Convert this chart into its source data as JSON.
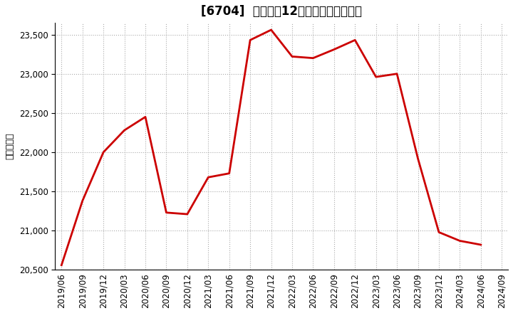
{
  "title": "[6704]  売上高の12か月移動合計の推移",
  "ylabel": "（百万円）",
  "line_color": "#cc0000",
  "line_width": 2.0,
  "background_color": "#ffffff",
  "grid_color": "#aaaaaa",
  "ylim": [
    20500,
    23650
  ],
  "yticks": [
    20500,
    21000,
    21500,
    22000,
    22500,
    23000,
    23500
  ],
  "dates": [
    "2019/06",
    "2019/09",
    "2019/12",
    "2020/03",
    "2020/06",
    "2020/09",
    "2020/12",
    "2021/03",
    "2021/06",
    "2021/09",
    "2021/12",
    "2022/03",
    "2022/06",
    "2022/09",
    "2022/12",
    "2023/03",
    "2023/06",
    "2023/09",
    "2023/12",
    "2024/03",
    "2024/06"
  ],
  "values": [
    20560,
    21380,
    22000,
    22280,
    22450,
    21230,
    21210,
    21680,
    21730,
    23430,
    23560,
    23220,
    23200,
    23310,
    23430,
    22960,
    23000,
    21920,
    20980,
    20870,
    20820
  ],
  "xtick_labels": [
    "2019/06",
    "2019/09",
    "2019/12",
    "2020/03",
    "2020/06",
    "2020/09",
    "2020/12",
    "2021/03",
    "2021/06",
    "2021/09",
    "2021/12",
    "2022/03",
    "2022/06",
    "2022/09",
    "2022/12",
    "2023/03",
    "2023/06",
    "2023/09",
    "2023/12",
    "2024/03",
    "2024/06",
    "2024/09"
  ],
  "title_fontsize": 12,
  "axis_fontsize": 8.5,
  "ylabel_fontsize": 9
}
